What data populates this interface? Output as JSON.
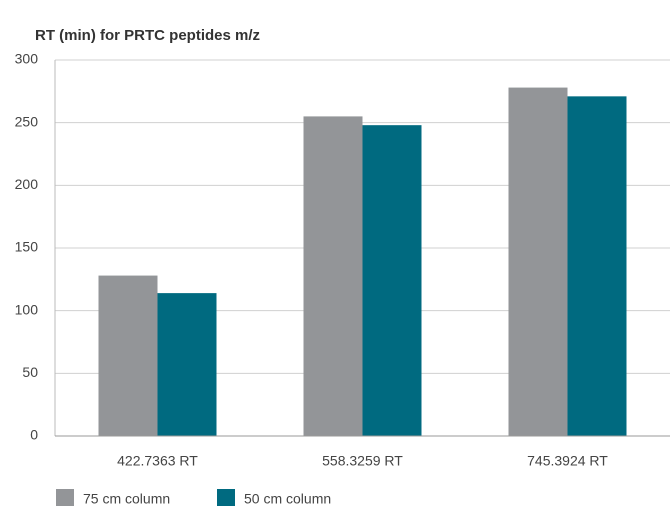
{
  "chart_data": {
    "type": "bar",
    "title": "RT (min) for PRTC peptides m/z",
    "categories": [
      "422.7363 RT",
      "558.3259 RT",
      "745.3924 RT"
    ],
    "series": [
      {
        "name": "75 cm column",
        "color": "#939598",
        "values": [
          128,
          255,
          278
        ]
      },
      {
        "name": "50 cm column",
        "color": "#006a80",
        "values": [
          114,
          248,
          271
        ]
      }
    ],
    "ylim": [
      0,
      300
    ],
    "yticks": [
      0,
      50,
      100,
      150,
      200,
      250,
      300
    ],
    "grid": true,
    "legend": "bottom-left"
  }
}
